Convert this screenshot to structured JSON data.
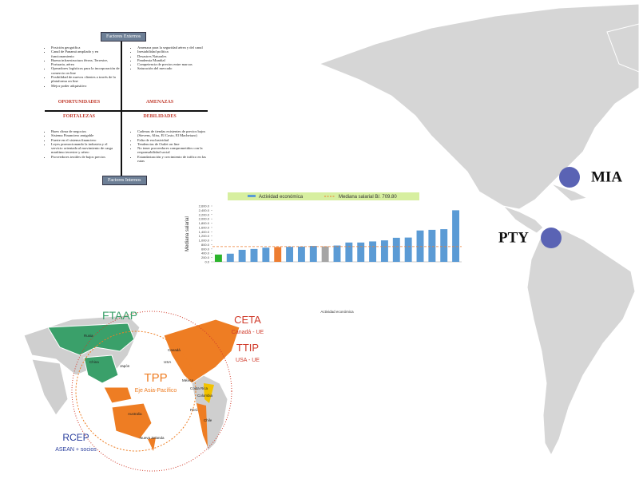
{
  "swot": {
    "external_header": "Factores Externos",
    "internal_header": "Factores Internos",
    "quadrants": [
      {
        "title": "OPORTUNIDADES",
        "items": [
          "Posición geográfica",
          "Canal de Panamá ampliado y en funcionamiento",
          "Buena infraestructura férrea, Terrestre, Portuaria, aérea",
          "Operadores logísticos para la incorporación de comercio on line",
          "Posibilidad de nuevos clientes a través de la plataforma on line",
          "Mejor poder adquisitivo"
        ]
      },
      {
        "title": "AMENAZAS",
        "items": [
          "Amenaza para la seguridad aérea y del canal",
          "Inestabilidad política",
          "Desastres Naturales",
          "Pandemia Mundial",
          "Competencia de precios entre marcas",
          "Saturación del mercado"
        ]
      },
      {
        "title": "FORTALEZAS",
        "items": [
          "Buen clima de negocios",
          "Sistema Financiero amigable",
          "Fuerte en el sistema financiero",
          "Leyes promocionando la industria y el servicio orientada al movimiento de carga marítimo terrestre y aéreo",
          "Proveedores textiles de bajos precios"
        ]
      },
      {
        "title": "DEBILIDADES",
        "items": [
          "Cadenas de tiendas existentes de precios bajos (Stevens, Aliss, El Costo, El Machetazo)",
          "Falta de exclusividad",
          "Tendencias de Outlet on line",
          "No tener proveedores comprometidos con la responsabilidad social",
          "Estandarización y crecimiento de tráfico en las rutas"
        ]
      }
    ]
  },
  "chart_data": {
    "type": "bar",
    "x_label": "Actividad económica",
    "y_label": "Mediana salarial",
    "series_name": "Actividad económica",
    "reference_line": {
      "name": "Mediana salarial B/. 709.80",
      "value": 709.8,
      "color": "#ed7d31"
    },
    "categories": [
      null,
      null,
      null,
      null,
      null,
      null,
      null,
      null,
      null,
      null,
      null,
      null,
      null,
      null,
      null,
      null,
      null,
      null,
      null,
      null,
      null
    ],
    "values": [
      340,
      380,
      560,
      600,
      660,
      690,
      700,
      710,
      740,
      720,
      760,
      900,
      900,
      950,
      1000,
      1120,
      1130,
      1460,
      1490,
      1520,
      2400
    ],
    "colors": [
      "#2db52d",
      "#5b9bd5",
      "#5b9bd5",
      "#5b9bd5",
      "#5b9bd5",
      "#ed7d31",
      "#5b9bd5",
      "#5b9bd5",
      "#5b9bd5",
      "#a5a5a5",
      "#5b9bd5",
      "#5b9bd5",
      "#5b9bd5",
      "#5b9bd5",
      "#5b9bd5",
      "#5b9bd5",
      "#5b9bd5",
      "#5b9bd5",
      "#5b9bd5",
      "#5b9bd5",
      "#5b9bd5"
    ],
    "ylim": [
      0,
      2600
    ],
    "yticks": [
      {
        "value": 0,
        "label": "0.0"
      },
      {
        "value": 200,
        "label": "200.0"
      },
      {
        "value": 400,
        "label": "400.0"
      },
      {
        "value": 600,
        "label": "600.0"
      },
      {
        "value": 800,
        "label": "800.0"
      },
      {
        "value": 1000,
        "label": "1,000.0"
      },
      {
        "value": 1200,
        "label": "1,200.0"
      },
      {
        "value": 1400,
        "label": "1,400.0"
      },
      {
        "value": 1600,
        "label": "1,600.0"
      },
      {
        "value": 1800,
        "label": "1,800.0"
      },
      {
        "value": 2000,
        "label": "2,000.0"
      },
      {
        "value": 2200,
        "label": "2,200.0"
      },
      {
        "value": 2400,
        "label": "2,400.0"
      },
      {
        "value": 2600,
        "label": "2,600.0"
      }
    ]
  },
  "americas_map": {
    "points": [
      "MIA",
      "PTY"
    ]
  },
  "trade_map": {
    "blocs": [
      {
        "name": "FTAAP",
        "color": "#3aa06a"
      },
      {
        "name": "CETA",
        "sub": "Canadá - UE",
        "color": "#d03a2a"
      },
      {
        "name": "TTIP",
        "sub": "USA - UE",
        "color": "#d03a2a"
      },
      {
        "name": "TPP",
        "sub": "Eje Asia-Pacífico",
        "color": "#ee7d23"
      },
      {
        "name": "RCEP",
        "sub": "ASEAN + socios",
        "color": "#2a3f9e"
      }
    ],
    "countries": [
      "Rusia",
      "China",
      "Japón",
      "Canadá",
      "USA",
      "México",
      "Costa Rica",
      "Colombia",
      "Perú",
      "Chile",
      "Australia",
      "Nueva Zelanda"
    ]
  }
}
